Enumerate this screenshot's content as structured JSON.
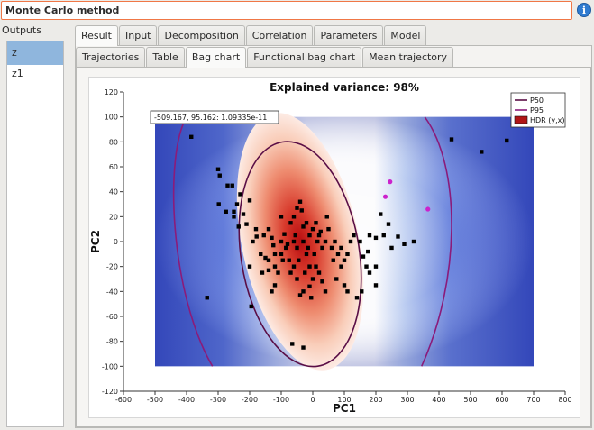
{
  "window": {
    "title": "Monte Carlo method",
    "info_icon": "info-icon"
  },
  "outputs": {
    "label": "Outputs",
    "items": [
      "z",
      "z1"
    ],
    "selected": "z"
  },
  "tabs": {
    "top": [
      "Result",
      "Input",
      "Decomposition",
      "Correlation",
      "Parameters",
      "Model"
    ],
    "top_active": "Result",
    "sub": [
      "Trajectories",
      "Table",
      "Bag chart",
      "Functional bag chart",
      "Mean trajectory"
    ],
    "sub_active": "Bag chart"
  },
  "chart_data": {
    "type": "scatter",
    "title": "Explained variance: 98%",
    "xlabel": "PC1",
    "ylabel": "PC2",
    "xlim": [
      -600,
      800
    ],
    "ylim": [
      -120,
      120
    ],
    "xticks": [
      -600,
      -500,
      -400,
      -300,
      -200,
      -100,
      0,
      100,
      200,
      300,
      400,
      500,
      600,
      700,
      800
    ],
    "yticks": [
      -120,
      -100,
      -80,
      -60,
      -40,
      -20,
      0,
      20,
      40,
      60,
      80,
      100,
      120
    ],
    "tooltip": "-509.167, 95.162: 1.09335e-11",
    "legend": {
      "placement": "top-right",
      "entries": [
        {
          "label": "P50",
          "color": "#5a0e46"
        },
        {
          "label": "P95",
          "color": "#8b1b7a"
        },
        {
          "label": "HDR (y,x)",
          "color": "#b01515"
        }
      ]
    },
    "colors": {
      "points": "#000000",
      "outliers": "#cc22cc",
      "heat_low": "#3a4fc4",
      "heat_mid": "#ffffff",
      "heat_high": "#c01010"
    },
    "outlier_points": [
      [
        230,
        36
      ],
      [
        245,
        48
      ],
      [
        365,
        26
      ]
    ],
    "points": [
      [
        -385,
        84
      ],
      [
        -300,
        58
      ],
      [
        -295,
        53
      ],
      [
        -270,
        45
      ],
      [
        -298,
        30
      ],
      [
        -275,
        24
      ],
      [
        -250,
        24
      ],
      [
        -255,
        45
      ],
      [
        -240,
        30
      ],
      [
        -230,
        38
      ],
      [
        -250,
        20
      ],
      [
        -235,
        12
      ],
      [
        -220,
        22
      ],
      [
        -200,
        33
      ],
      [
        -210,
        14
      ],
      [
        -180,
        10
      ],
      [
        -178,
        4
      ],
      [
        -190,
        0
      ],
      [
        -155,
        5
      ],
      [
        -140,
        10
      ],
      [
        -130,
        3
      ],
      [
        -125,
        -3
      ],
      [
        -165,
        -10
      ],
      [
        -150,
        -13
      ],
      [
        -140,
        -23
      ],
      [
        -120,
        -20
      ],
      [
        -100,
        -10
      ],
      [
        -100,
        0
      ],
      [
        -80,
        -2
      ],
      [
        -70,
        15
      ],
      [
        -60,
        20
      ],
      [
        -50,
        27
      ],
      [
        -40,
        32
      ],
      [
        -60,
        0
      ],
      [
        -50,
        -5
      ],
      [
        -30,
        0
      ],
      [
        -20,
        -10
      ],
      [
        -10,
        -20
      ],
      [
        -60,
        -20
      ],
      [
        -70,
        -25
      ],
      [
        -50,
        -30
      ],
      [
        -40,
        -43
      ],
      [
        -30,
        -40
      ],
      [
        -10,
        -36
      ],
      [
        0,
        -30
      ],
      [
        10,
        -20
      ],
      [
        20,
        -25
      ],
      [
        30,
        -32
      ],
      [
        40,
        -40
      ],
      [
        -85,
        -5
      ],
      [
        -95,
        -15
      ],
      [
        -110,
        -25
      ],
      [
        -120,
        -35
      ],
      [
        -75,
        -15
      ],
      [
        -35,
        25
      ],
      [
        -20,
        15
      ],
      [
        -10,
        5
      ],
      [
        0,
        10
      ],
      [
        10,
        15
      ],
      [
        20,
        5
      ],
      [
        30,
        -5
      ],
      [
        40,
        0
      ],
      [
        50,
        10
      ],
      [
        60,
        -5
      ],
      [
        70,
        0
      ],
      [
        80,
        -10
      ],
      [
        90,
        -20
      ],
      [
        100,
        -15
      ],
      [
        110,
        -10
      ],
      [
        90,
        -5
      ],
      [
        120,
        0
      ],
      [
        130,
        5
      ],
      [
        150,
        0
      ],
      [
        160,
        -12
      ],
      [
        170,
        -20
      ],
      [
        180,
        -25
      ],
      [
        200,
        -35
      ],
      [
        155,
        -40
      ],
      [
        140,
        -45
      ],
      [
        110,
        -40
      ],
      [
        100,
        -35
      ],
      [
        -55,
        5
      ],
      [
        -45,
        -15
      ],
      [
        -25,
        -25
      ],
      [
        -15,
        -5
      ],
      [
        5,
        -10
      ],
      [
        15,
        0
      ],
      [
        -130,
        -40
      ],
      [
        -200,
        -20
      ],
      [
        -195,
        -52
      ],
      [
        -65,
        -82
      ],
      [
        -30,
        -85
      ],
      [
        25,
        8
      ],
      [
        215,
        22
      ],
      [
        225,
        5
      ],
      [
        240,
        14
      ],
      [
        250,
        -5
      ],
      [
        270,
        4
      ],
      [
        290,
        -2
      ],
      [
        320,
        0
      ],
      [
        200,
        3
      ],
      [
        -335,
        -45
      ],
      [
        440,
        82
      ],
      [
        535,
        72
      ],
      [
        615,
        81
      ],
      [
        200,
        -20
      ],
      [
        180,
        5
      ],
      [
        175,
        -8
      ],
      [
        -30,
        12
      ],
      [
        -90,
        6
      ],
      [
        -100,
        20
      ],
      [
        -160,
        -25
      ],
      [
        -140,
        -15
      ],
      [
        -120,
        -10
      ],
      [
        45,
        20
      ],
      [
        65,
        -15
      ],
      [
        75,
        -30
      ],
      [
        -5,
        -45
      ]
    ]
  }
}
